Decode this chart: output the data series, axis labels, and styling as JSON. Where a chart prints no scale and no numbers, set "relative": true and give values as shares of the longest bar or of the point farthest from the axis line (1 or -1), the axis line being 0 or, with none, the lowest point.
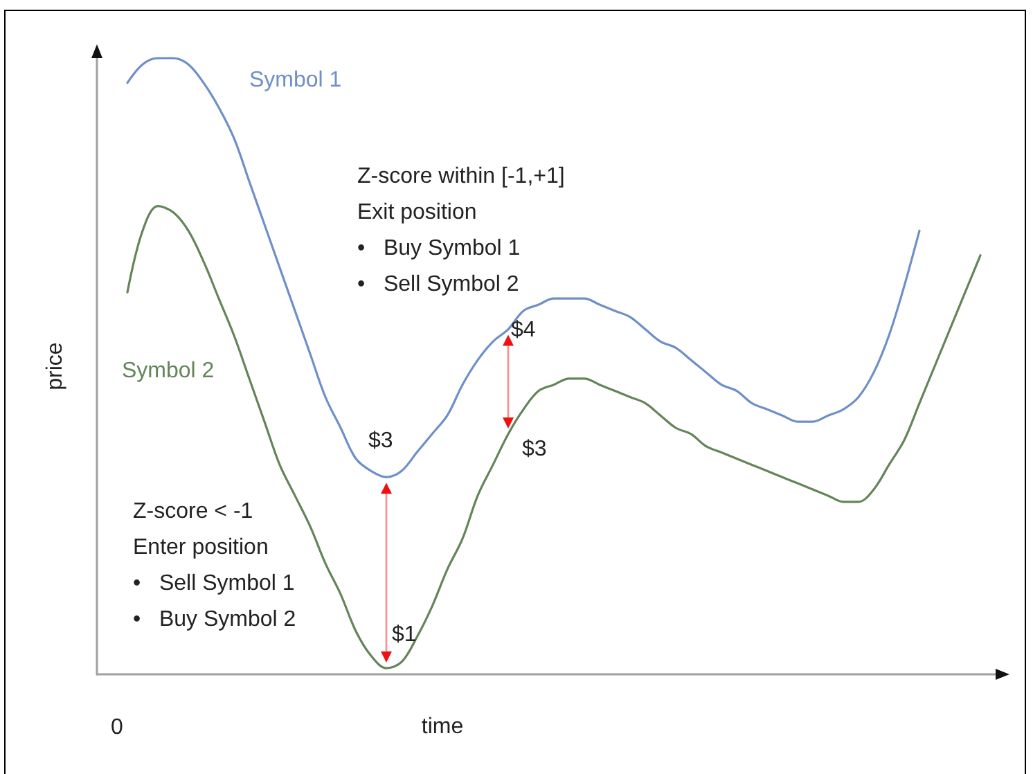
{
  "chart_data": {
    "type": "line",
    "relative": true,
    "xlabel": "time",
    "ylabel": "price",
    "categories": [
      null,
      null,
      null,
      null,
      null,
      null,
      null,
      null,
      null,
      null,
      null,
      null,
      null,
      null,
      null,
      null,
      null,
      null,
      null,
      null,
      null,
      null,
      null,
      null,
      null,
      null,
      null,
      null,
      null,
      null,
      null,
      null,
      null,
      null,
      null,
      null,
      null,
      null,
      null,
      null,
      null,
      null,
      null,
      null,
      null,
      null,
      null,
      null,
      null,
      null,
      null,
      null,
      null,
      null,
      null,
      null,
      null,
      null,
      null,
      null
    ],
    "series": [
      {
        "name": "Symbol 1",
        "color": "#6f8fc8",
        "values": [
          null,
          null,
          0.96,
          0.99,
          1,
          1,
          0.99,
          0.96,
          0.92,
          0.87,
          0.8,
          0.73,
          0.66,
          0.59,
          0.52,
          0.45,
          0.4,
          0.35,
          0.33,
          0.32,
          0.33,
          0.36,
          0.39,
          0.42,
          0.47,
          0.51,
          0.54,
          0.56,
          0.59,
          0.6,
          0.61,
          0.61,
          0.61,
          0.6,
          0.59,
          0.58,
          0.56,
          0.54,
          0.53,
          0.51,
          0.49,
          0.47,
          0.46,
          0.44,
          0.43,
          0.42,
          0.41,
          0.41,
          0.42,
          0.43,
          0.45,
          0.49,
          0.55,
          0.63,
          0.72,
          null,
          null,
          null,
          null,
          null
        ]
      },
      {
        "name": "Symbol 2",
        "color": "#64845a",
        "values": [
          null,
          null,
          0.62,
          0.72,
          0.76,
          0.75,
          0.72,
          0.67,
          0.61,
          0.55,
          0.48,
          0.41,
          0.34,
          0.29,
          0.24,
          0.18,
          0.13,
          0.07,
          0.03,
          0.01,
          0.02,
          0.06,
          0.11,
          0.17,
          0.22,
          0.29,
          0.34,
          0.39,
          0.43,
          0.46,
          0.47,
          0.48,
          0.48,
          0.47,
          0.46,
          0.45,
          0.44,
          0.42,
          0.4,
          0.39,
          0.37,
          0.36,
          0.35,
          0.34,
          0.33,
          0.32,
          0.31,
          0.3,
          0.29,
          0.28,
          0.28,
          0.3,
          0.34,
          0.38,
          0.44,
          0.5,
          0.56,
          0.62,
          0.68,
          null
        ]
      }
    ],
    "annotations": [
      "Z-score within [-1,+1]\nExit position\n•   Buy Symbol 1\n•   Sell Symbol 2",
      "$4",
      "$3",
      "$3",
      "Z-score < -1\nEnter position\n•   Sell Symbol 1\n•   Buy Symbol 2",
      "$1",
      "0"
    ]
  }
}
